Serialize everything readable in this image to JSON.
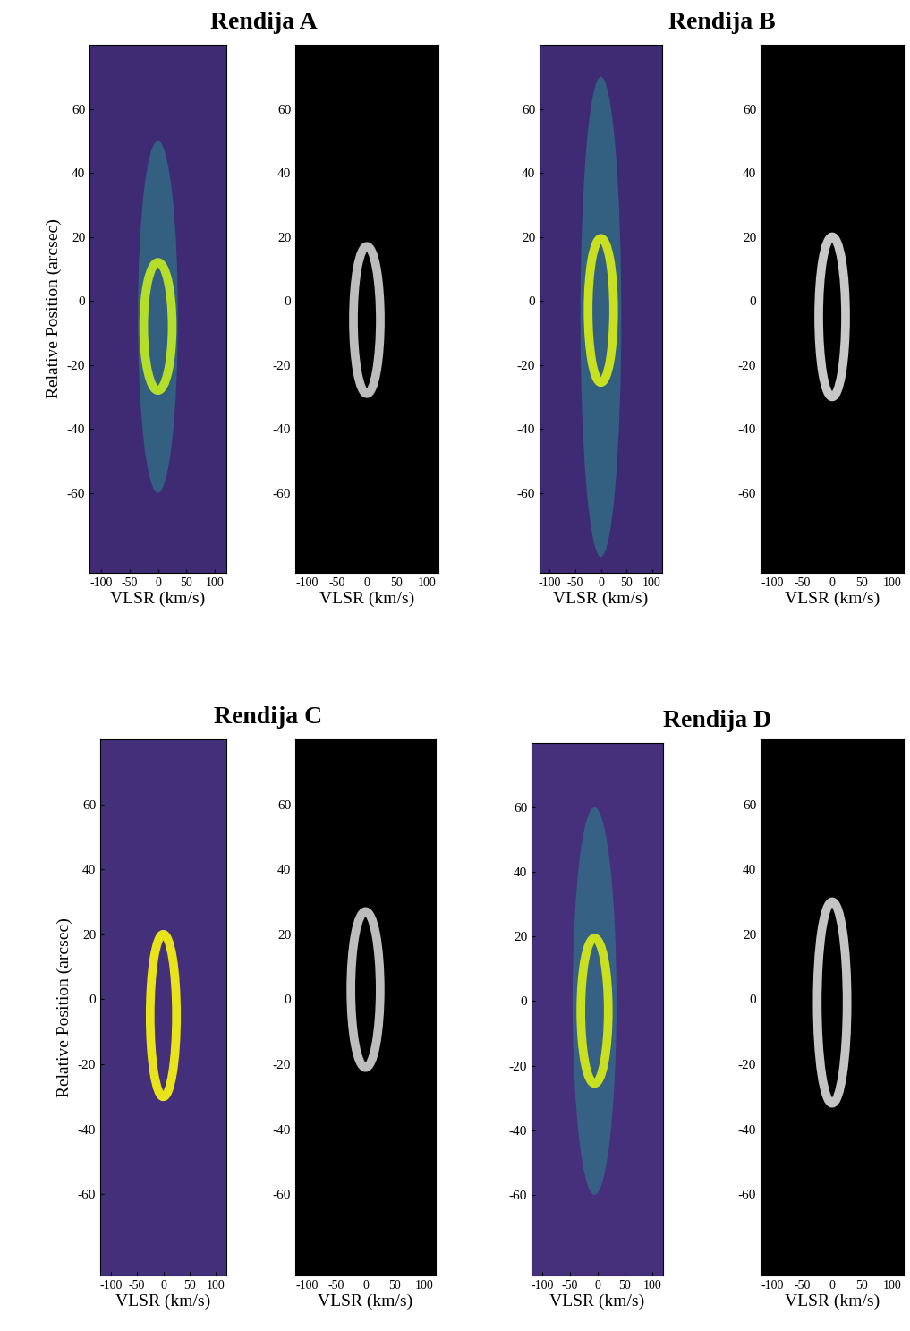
{
  "chart_data": [
    {
      "type": "ellipse_ring",
      "title": "Rendija A",
      "x_label": "VLSR (km/s)",
      "y_label": "Relative Position (arcsec)",
      "xlim": [
        -120,
        120
      ],
      "ylim": [
        -85,
        80
      ],
      "xticks": [
        -100,
        -50,
        0,
        50,
        100
      ],
      "yticks": [
        -60,
        -40,
        -20,
        0,
        20,
        40,
        60
      ],
      "ring": {
        "center": [
          0,
          -8
        ],
        "width": 50,
        "height": 40
      },
      "halo": {
        "center": [
          0,
          -5
        ],
        "width": 70,
        "height": 110
      },
      "colors": [
        "#3f2b74",
        "#2a8a8c",
        "#b5de2b"
      ]
    },
    {
      "type": "ellipse_ring",
      "x_label": "VLSR (km/s)",
      "xlim": [
        -120,
        120
      ],
      "ylim": [
        -85,
        80
      ],
      "xticks": [
        -100,
        -50,
        0,
        50,
        100
      ],
      "yticks": [
        -60,
        -40,
        -20,
        0,
        20,
        40,
        60
      ],
      "ring": {
        "center": [
          0,
          -6
        ],
        "width": 45,
        "height": 46
      },
      "colors": [
        "#000000",
        "#bdbdbd"
      ]
    },
    {
      "type": "ellipse_ring",
      "title": "Rendija B",
      "x_label": "VLSR (km/s)",
      "xlim": [
        -120,
        120
      ],
      "ylim": [
        -85,
        80
      ],
      "xticks": [
        -100,
        -50,
        0,
        50,
        100
      ],
      "yticks": [
        -60,
        -40,
        -20,
        0,
        20,
        40,
        60
      ],
      "ring": {
        "center": [
          0,
          -3
        ],
        "width": 50,
        "height": 45
      },
      "halo": {
        "center": [
          0,
          -5
        ],
        "width": 80,
        "height": 150
      },
      "colors": [
        "#3f2b74",
        "#2a8a8c",
        "#c8e020"
      ]
    },
    {
      "type": "ellipse_ring",
      "x_label": "VLSR (km/s)",
      "xlim": [
        -120,
        120
      ],
      "ylim": [
        -85,
        80
      ],
      "xticks": [
        -100,
        -50,
        0,
        50,
        100
      ],
      "yticks": [
        -60,
        -40,
        -20,
        0,
        20,
        40,
        60
      ],
      "ring": {
        "center": [
          0,
          -5
        ],
        "width": 45,
        "height": 50
      },
      "colors": [
        "#000000",
        "#c8c8c8"
      ]
    },
    {
      "type": "ellipse_ring",
      "title": "Rendija C",
      "x_label": "VLSR (km/s)",
      "y_label": "Relative Position (arcsec)",
      "xlim": [
        -120,
        120
      ],
      "ylim": [
        -85,
        80
      ],
      "xticks": [
        -100,
        -50,
        0,
        50,
        100
      ],
      "yticks": [
        -60,
        -40,
        -20,
        0,
        20,
        40,
        60
      ],
      "ring": {
        "center": [
          0,
          -5
        ],
        "width": 50,
        "height": 50
      },
      "colors": [
        "#44307a",
        "#e8e419"
      ]
    },
    {
      "type": "ellipse_ring",
      "x_label": "VLSR (km/s)",
      "xlim": [
        -120,
        120
      ],
      "ylim": [
        -85,
        80
      ],
      "xticks": [
        -100,
        -50,
        0,
        50,
        100
      ],
      "yticks": [
        -60,
        -40,
        -20,
        0,
        20,
        40,
        60
      ],
      "ring": {
        "center": [
          0,
          3
        ],
        "width": 50,
        "height": 48
      },
      "colors": [
        "#000000",
        "#bdbdbd"
      ]
    },
    {
      "type": "ellipse_ring",
      "title": "Rendija D",
      "x_label": "VLSR (km/s)",
      "xlim": [
        -120,
        120
      ],
      "ylim": [
        -85,
        80
      ],
      "xticks": [
        -100,
        -50,
        0,
        50,
        100
      ],
      "yticks": [
        -60,
        -40,
        -20,
        0,
        20,
        40,
        60
      ],
      "ring": {
        "center": [
          -5,
          -3
        ],
        "width": 50,
        "height": 45
      },
      "halo": {
        "center": [
          -5,
          0
        ],
        "width": 80,
        "height": 120
      },
      "colors": [
        "#46307c",
        "#2a8a8c",
        "#c8e020"
      ]
    },
    {
      "type": "ellipse_ring",
      "x_label": "VLSR (km/s)",
      "xlim": [
        -120,
        120
      ],
      "ylim": [
        -85,
        80
      ],
      "xticks": [
        -100,
        -50,
        0,
        50,
        100
      ],
      "yticks": [
        -60,
        -40,
        -20,
        0,
        20,
        40,
        60
      ],
      "ring": {
        "center": [
          0,
          -1
        ],
        "width": 50,
        "height": 62
      },
      "colors": [
        "#000000",
        "#c4c4c4"
      ]
    }
  ]
}
